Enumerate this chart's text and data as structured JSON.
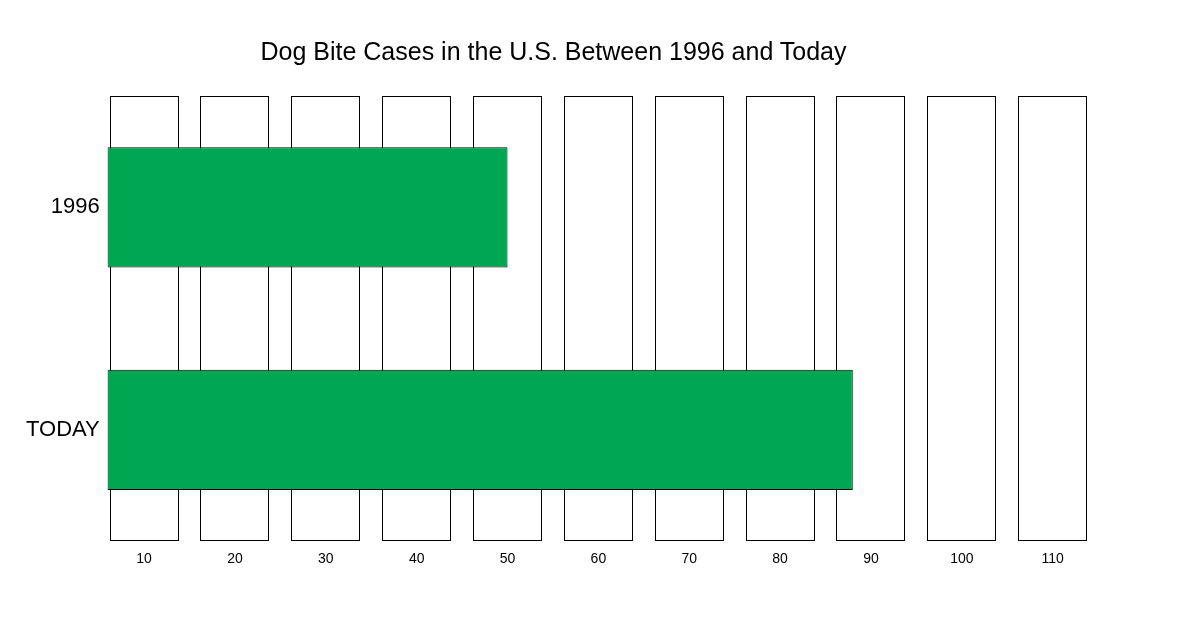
{
  "chart_data": {
    "type": "bar",
    "orientation": "horizontal",
    "title": "Dog Bite Cases in the U.S. Between 1996 and Today",
    "categories": [
      "1996",
      "TODAY"
    ],
    "values": [
      50,
      88
    ],
    "color": "#00a651",
    "xlim": [
      6,
      114
    ],
    "xticks": [
      10,
      20,
      30,
      40,
      50,
      60,
      70,
      80,
      90,
      100,
      110
    ],
    "legend": false
  }
}
